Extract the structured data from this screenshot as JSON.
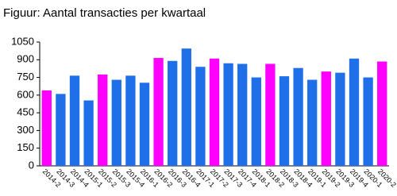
{
  "chart_data": {
    "type": "bar",
    "title": "Figuur: Aantal transacties per kwartaal",
    "categories": [
      "2014-2",
      "2014-3",
      "2014-4",
      "2015-1",
      "2015-2",
      "2015-3",
      "2015-4",
      "2016-1",
      "2016-2",
      "2016-3",
      "2016-4",
      "2017-1",
      "2017-2",
      "2017-3",
      "2017-4",
      "2018-1",
      "2018-2",
      "2018-3",
      "2018-4",
      "2019-1",
      "2019-2",
      "2019-3",
      "2019-4",
      "2020-1",
      "2020-2"
    ],
    "values": [
      640,
      610,
      765,
      555,
      775,
      730,
      765,
      705,
      915,
      890,
      995,
      840,
      910,
      870,
      865,
      750,
      865,
      760,
      830,
      730,
      800,
      790,
      910,
      750,
      885
    ],
    "colors": [
      "#ff00ff",
      "#1f6fe8",
      "#1f6fe8",
      "#1f6fe8",
      "#ff00ff",
      "#1f6fe8",
      "#1f6fe8",
      "#1f6fe8",
      "#ff00ff",
      "#1f6fe8",
      "#1f6fe8",
      "#1f6fe8",
      "#ff00ff",
      "#1f6fe8",
      "#1f6fe8",
      "#1f6fe8",
      "#ff00ff",
      "#1f6fe8",
      "#1f6fe8",
      "#1f6fe8",
      "#ff00ff",
      "#1f6fe8",
      "#1f6fe8",
      "#1f6fe8",
      "#ff00ff"
    ],
    "ylim": [
      0,
      1050
    ],
    "yticks": [
      0,
      150,
      300,
      450,
      600,
      750,
      900,
      1050
    ],
    "grid": false
  }
}
